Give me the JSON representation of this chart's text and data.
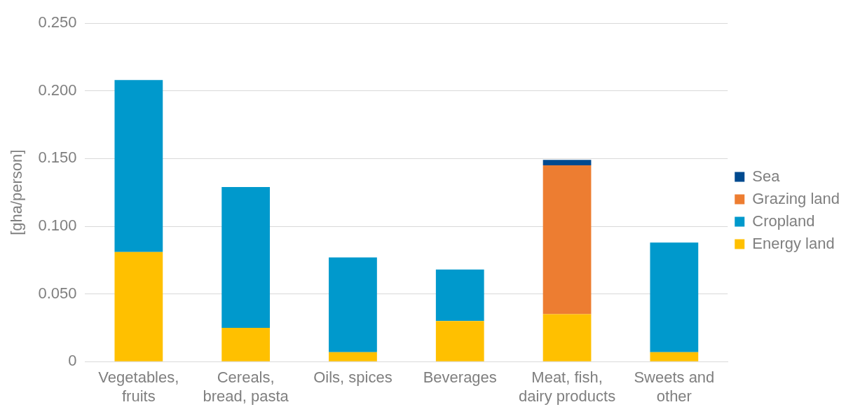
{
  "chart_data": {
    "type": "bar",
    "stacked": true,
    "ylabel": "[gha/person]",
    "categories": [
      "Vegetables, fruits",
      "Cereals, bread, pasta",
      "Oils, spices",
      "Beverages",
      "Meat, fish, dairy products",
      "Sweets and other"
    ],
    "series": [
      {
        "name": "Energy land",
        "color": "#ffc000",
        "values": [
          0.081,
          0.025,
          0.007,
          0.03,
          0.035,
          0.007
        ]
      },
      {
        "name": "Cropland",
        "color": "#0099cc",
        "values": [
          0.127,
          0.104,
          0.07,
          0.038,
          0,
          0.081
        ]
      },
      {
        "name": "Grazing land",
        "color": "#ed7d31",
        "values": [
          0,
          0,
          0,
          0,
          0.11,
          0
        ]
      },
      {
        "name": "Sea",
        "color": "#004a8f",
        "values": [
          0,
          0,
          0,
          0,
          0.004,
          0
        ]
      }
    ],
    "ylim": [
      0,
      0.25
    ],
    "yticks": [
      0,
      {
        "value": 0.05,
        "label": "0.050"
      },
      {
        "value": 0.1,
        "label": "0.100"
      },
      {
        "value": 0.15,
        "label": "0.150"
      },
      {
        "value": 0.2,
        "label": "0.200"
      },
      {
        "value": 0.25,
        "label": "0.250"
      }
    ],
    "grid": "y",
    "legend": "right"
  }
}
